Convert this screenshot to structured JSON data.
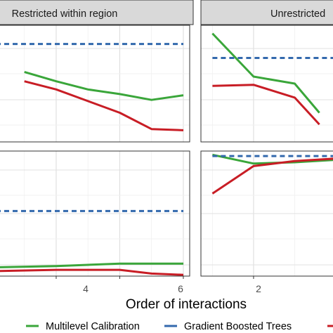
{
  "chart_data": {
    "type": "line",
    "xlabel": "Order of interactions",
    "grid": true,
    "legend_position": "bottom",
    "facet_columns": [
      "Restricted within region",
      "Unrestricted"
    ],
    "x_ticks": [
      2,
      4,
      6
    ],
    "x_tick_labels": [
      "2",
      "4",
      "6"
    ],
    "series": [
      {
        "name": "Multilevel Calibration",
        "color": "#3aa63a",
        "style": "solid"
      },
      {
        "name": "Gradient Boosted Trees",
        "color": "#3369ad",
        "style": "dashed"
      },
      {
        "name": "",
        "color": "#c81d25",
        "style": "solid"
      }
    ],
    "panels": [
      {
        "column": "Restricted within region",
        "row": 1,
        "xlim": [
          0.1,
          6.2
        ],
        "ylim": [
          0,
          1
        ],
        "lines": {
          "Multilevel Calibration": {
            "x": [
              1,
              2,
              3,
              4,
              5,
              6
            ],
            "y": [
              0.6,
              0.52,
              0.45,
              0.41,
              0.36,
              0.4
            ]
          },
          "Gradient Boosted Trees": {
            "x": [
              0.1,
              6
            ],
            "y": [
              0.84,
              0.84
            ]
          },
          "": {
            "x": [
              1,
              2,
              3,
              4,
              5,
              6
            ],
            "y": [
              0.52,
              0.45,
              0.35,
              0.25,
              0.11,
              0.1
            ]
          }
        }
      },
      {
        "column": "Unrestricted",
        "row": 1,
        "xlim": [
          0.72,
          4
        ],
        "ylim": [
          0,
          1
        ],
        "lines": {
          "Multilevel Calibration": {
            "x": [
              1,
              2,
              3,
              3.6
            ],
            "y": [
              0.93,
              0.56,
              0.5,
              0.25
            ]
          },
          "Gradient Boosted Trees": {
            "x": [
              1,
              4
            ],
            "y": [
              0.72,
              0.72
            ]
          },
          "": {
            "x": [
              1,
              2,
              3,
              3.6
            ],
            "y": [
              0.48,
              0.49,
              0.38,
              0.15
            ]
          }
        }
      },
      {
        "column": "Restricted within region",
        "row": 2,
        "xlim": [
          0.1,
          6.2
        ],
        "ylim": [
          0,
          1
        ],
        "lines": {
          "Multilevel Calibration": {
            "x": [
              0.1,
              2,
              4,
              6
            ],
            "y": [
              0.07,
              0.08,
              0.1,
              0.1
            ]
          },
          "Gradient Boosted Trees": {
            "x": [
              0.1,
              6
            ],
            "y": [
              0.52,
              0.52
            ]
          },
          "": {
            "x": [
              0.1,
              2,
              4,
              5,
              6
            ],
            "y": [
              0.04,
              0.05,
              0.05,
              0.02,
              0.01
            ]
          }
        }
      },
      {
        "column": "Unrestricted",
        "row": 2,
        "xlim": [
          0.72,
          4
        ],
        "ylim": [
          0,
          1
        ],
        "lines": {
          "Multilevel Calibration": {
            "x": [
              1,
              2,
              3,
              4
            ],
            "y": [
              0.97,
              0.9,
              0.91,
              0.93
            ]
          },
          "Gradient Boosted Trees": {
            "x": [
              1,
              4
            ],
            "y": [
              0.96,
              0.96
            ]
          },
          "": {
            "x": [
              1,
              2,
              3,
              4
            ],
            "y": [
              0.66,
              0.88,
              0.92,
              0.94
            ]
          }
        }
      }
    ]
  }
}
